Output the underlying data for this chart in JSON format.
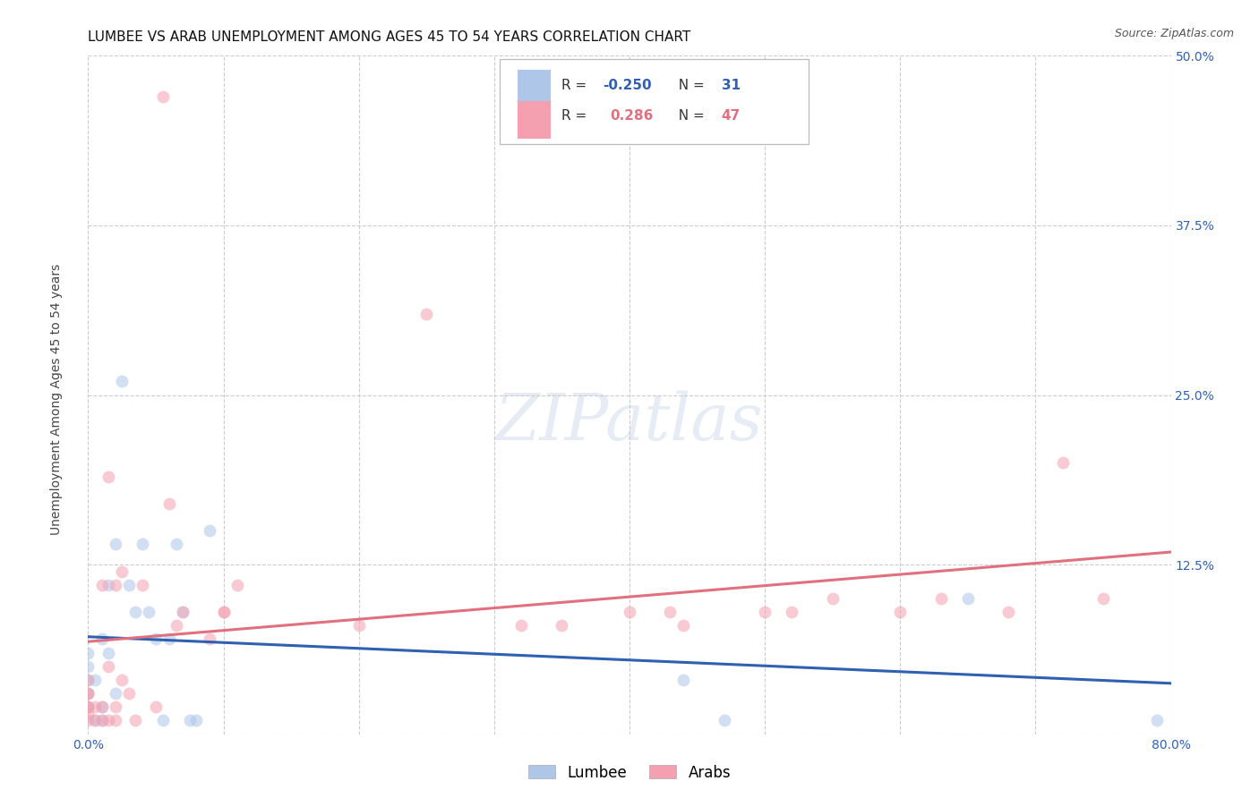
{
  "title": "LUMBEE VS ARAB UNEMPLOYMENT AMONG AGES 45 TO 54 YEARS CORRELATION CHART",
  "source": "Source: ZipAtlas.com",
  "ylabel": "Unemployment Among Ages 45 to 54 years",
  "xlim": [
    0.0,
    0.8
  ],
  "ylim": [
    0.0,
    0.5
  ],
  "xticks": [
    0.0,
    0.1,
    0.2,
    0.3,
    0.4,
    0.5,
    0.6,
    0.7,
    0.8
  ],
  "xticklabels": [
    "0.0%",
    "",
    "",
    "",
    "",
    "",
    "",
    "",
    "80.0%"
  ],
  "yticks": [
    0.0,
    0.125,
    0.25,
    0.375,
    0.5
  ],
  "yticklabels_right": [
    "",
    "12.5%",
    "25.0%",
    "37.5%",
    "50.0%"
  ],
  "lumbee_R": -0.25,
  "lumbee_N": 31,
  "arab_R": 0.286,
  "arab_N": 47,
  "lumbee_color": "#aec6e8",
  "arab_color": "#f4a0b0",
  "lumbee_line_color": "#3060b0",
  "arab_line_color": "#e07080",
  "background_color": "#ffffff",
  "grid_color": "#cccccc",
  "lumbee_points_x": [
    0.0,
    0.0,
    0.0,
    0.0,
    0.0,
    0.005,
    0.005,
    0.01,
    0.01,
    0.01,
    0.015,
    0.015,
    0.02,
    0.02,
    0.025,
    0.03,
    0.035,
    0.04,
    0.045,
    0.05,
    0.055,
    0.06,
    0.065,
    0.07,
    0.075,
    0.08,
    0.09,
    0.44,
    0.47,
    0.65,
    0.79
  ],
  "lumbee_points_y": [
    0.02,
    0.03,
    0.04,
    0.05,
    0.06,
    0.01,
    0.04,
    0.01,
    0.02,
    0.07,
    0.06,
    0.11,
    0.14,
    0.03,
    0.26,
    0.11,
    0.09,
    0.14,
    0.09,
    0.07,
    0.01,
    0.07,
    0.14,
    0.09,
    0.01,
    0.01,
    0.15,
    0.04,
    0.01,
    0.1,
    0.01
  ],
  "arab_points_x": [
    0.0,
    0.0,
    0.0,
    0.0,
    0.0,
    0.0,
    0.0,
    0.005,
    0.005,
    0.01,
    0.01,
    0.01,
    0.015,
    0.015,
    0.015,
    0.02,
    0.02,
    0.02,
    0.025,
    0.025,
    0.03,
    0.035,
    0.04,
    0.05,
    0.055,
    0.06,
    0.065,
    0.07,
    0.09,
    0.1,
    0.1,
    0.11,
    0.2,
    0.25,
    0.32,
    0.35,
    0.4,
    0.43,
    0.44,
    0.5,
    0.52,
    0.55,
    0.6,
    0.63,
    0.68,
    0.72,
    0.75
  ],
  "arab_points_y": [
    0.01,
    0.015,
    0.02,
    0.02,
    0.03,
    0.03,
    0.04,
    0.01,
    0.02,
    0.01,
    0.02,
    0.11,
    0.01,
    0.05,
    0.19,
    0.01,
    0.02,
    0.11,
    0.04,
    0.12,
    0.03,
    0.01,
    0.11,
    0.02,
    0.47,
    0.17,
    0.08,
    0.09,
    0.07,
    0.09,
    0.09,
    0.11,
    0.08,
    0.31,
    0.08,
    0.08,
    0.09,
    0.09,
    0.08,
    0.09,
    0.09,
    0.1,
    0.09,
    0.1,
    0.09,
    0.2,
    0.1
  ],
  "marker_size": 100,
  "marker_alpha": 0.55,
  "title_fontsize": 11,
  "axis_label_fontsize": 10,
  "tick_fontsize": 10,
  "watermark_text": "ZIPatlas",
  "watermark_fontsize": 52
}
